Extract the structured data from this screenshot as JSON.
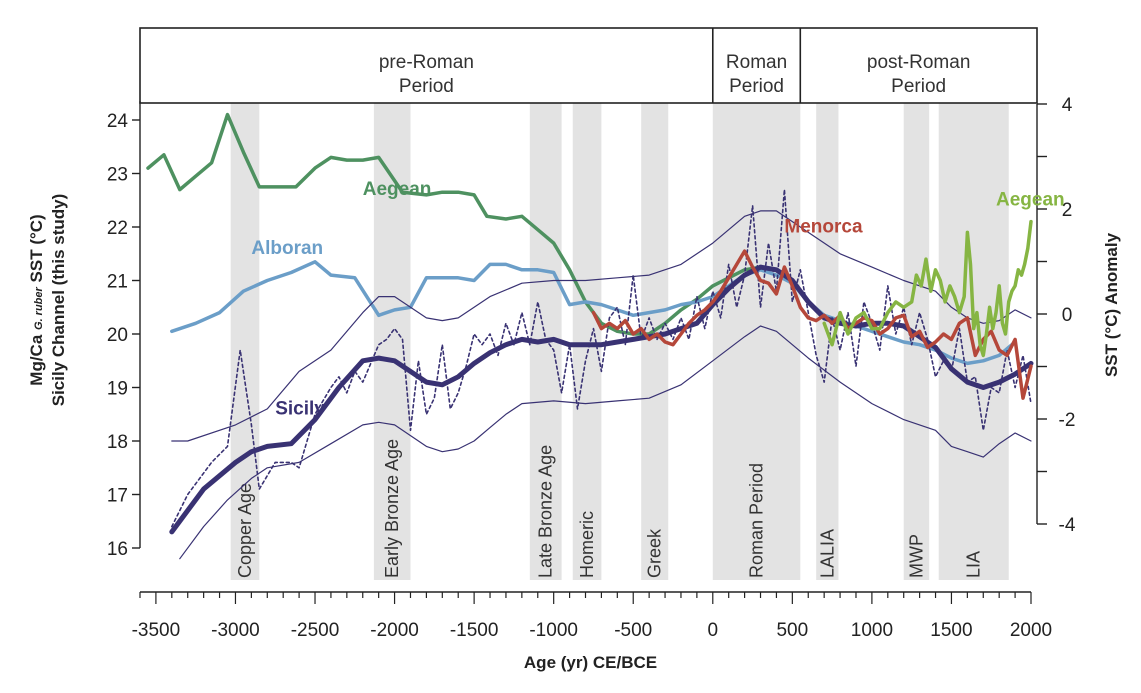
{
  "chart_data": {
    "type": "line",
    "xlabel": "Age (yr) CE/BCE",
    "ylabel_left_line1": "Mg/Ca ",
    "ylabel_left_sub": "G. ruber",
    "ylabel_left_line1_end": " SST (°C)",
    "ylabel_left_line2": "Sicily Channel (this study)",
    "ylabel_right": "SST (°C) Anomaly",
    "xlim": [
      -3600,
      2000
    ],
    "ylim_left": [
      16,
      24.4
    ],
    "ylim_right": [
      -4,
      4
    ],
    "x_ticks": [
      -3500,
      -3000,
      -2500,
      -2000,
      -1500,
      -1000,
      -500,
      0,
      500,
      1000,
      1500,
      2000
    ],
    "x_tick_labels": [
      "-3500",
      "-3000",
      "-2500",
      "-2000",
      "-1500",
      "-1000",
      "-500",
      "0",
      "500",
      "1000",
      "1500",
      "2000"
    ],
    "y_left_ticks": [
      16,
      17,
      18,
      19,
      20,
      21,
      22,
      23,
      24
    ],
    "y_left_tick_labels": [
      "16",
      "17",
      "18",
      "19",
      "20",
      "21",
      "22",
      "23",
      "24"
    ],
    "y_right_ticks": [
      -4,
      -2,
      0,
      2,
      4
    ],
    "y_right_tick_labels": [
      "-4",
      "-2",
      "0",
      "2",
      "4"
    ],
    "periods": [
      {
        "line1": "pre-Roman",
        "line2": "Period",
        "start": -3600,
        "end": 0
      },
      {
        "line1": "Roman",
        "line2": "Period",
        "start": 0,
        "end": 550
      },
      {
        "line1": "post-Roman",
        "line2": "Period",
        "start": 550,
        "end": 2000
      }
    ],
    "bands": [
      {
        "label": "Copper Age",
        "start": -3030,
        "end": -2850
      },
      {
        "label": "Early Bronze Age",
        "start": -2130,
        "end": -1900
      },
      {
        "label": "Late Bronze Age",
        "start": -1150,
        "end": -950
      },
      {
        "label": "Homeric",
        "start": -880,
        "end": -700
      },
      {
        "label": "Greek",
        "start": -450,
        "end": -280
      },
      {
        "label": "Roman Period",
        "start": 0,
        "end": 550
      },
      {
        "label": "LALIA",
        "start": 650,
        "end": 790
      },
      {
        "label": "MWP",
        "start": 1200,
        "end": 1360
      },
      {
        "label": "LIA",
        "start": 1420,
        "end": 1860
      }
    ],
    "series": [
      {
        "name": "Aegean",
        "color": "#4e9160",
        "axis": "left",
        "label_x": -2200,
        "label_y": 22.6,
        "x": [
          -3550,
          -3450,
          -3350,
          -3250,
          -3150,
          -3050,
          -2950,
          -2850,
          -2750,
          -2620,
          -2500,
          -2400,
          -2300,
          -2200,
          -2100,
          -1950,
          -1800,
          -1700,
          -1600,
          -1500,
          -1420,
          -1300,
          -1200,
          -1100,
          -1000,
          -900,
          -800,
          -700,
          -600,
          -500,
          -400,
          -300,
          -200,
          -100,
          0,
          100,
          200,
          300
        ],
        "values": [
          23.1,
          23.35,
          22.7,
          22.95,
          23.2,
          24.1,
          23.4,
          22.75,
          22.75,
          22.75,
          23.1,
          23.3,
          23.25,
          23.25,
          23.3,
          22.65,
          22.6,
          22.65,
          22.65,
          22.6,
          22.2,
          22.15,
          22.2,
          21.95,
          21.7,
          21.2,
          20.6,
          20.2,
          20.05,
          20.0,
          20.0,
          20.2,
          20.45,
          20.65,
          20.9,
          21.05,
          21.2,
          21.25
        ]
      },
      {
        "name": "Alboran",
        "color": "#6b9ec8",
        "axis": "left",
        "label_x": -2900,
        "label_y": 21.5,
        "x": [
          -3400,
          -3250,
          -3100,
          -2950,
          -2800,
          -2650,
          -2500,
          -2400,
          -2250,
          -2100,
          -2000,
          -1900,
          -1800,
          -1700,
          -1600,
          -1500,
          -1400,
          -1300,
          -1200,
          -1100,
          -1000,
          -900,
          -800,
          -700,
          -600,
          -500,
          -400,
          -300,
          -200,
          -100,
          0,
          100,
          200,
          300,
          400,
          500,
          600,
          700,
          800,
          900,
          1000,
          1100,
          1200,
          1300,
          1400,
          1500,
          1600,
          1700,
          1800,
          1900
        ],
        "values": [
          20.05,
          20.2,
          20.4,
          20.8,
          21.0,
          21.15,
          21.35,
          21.1,
          21.05,
          20.35,
          20.45,
          20.5,
          21.05,
          21.05,
          21.05,
          21.0,
          21.3,
          21.3,
          21.2,
          21.2,
          21.15,
          20.55,
          20.6,
          20.55,
          20.45,
          20.35,
          20.4,
          20.45,
          20.55,
          20.6,
          20.7,
          20.9,
          21.1,
          21.2,
          21.1,
          20.95,
          20.6,
          20.35,
          20.25,
          20.15,
          20.05,
          19.95,
          19.85,
          19.8,
          19.7,
          19.55,
          19.45,
          19.5,
          19.6,
          19.85
        ]
      },
      {
        "name": "Sicily",
        "color": "#393273",
        "axis": "left",
        "label_x": -2750,
        "label_y": 18.5,
        "x": [
          -3400,
          -3200,
          -3000,
          -2900,
          -2800,
          -2650,
          -2500,
          -2350,
          -2200,
          -2100,
          -2000,
          -1900,
          -1800,
          -1700,
          -1600,
          -1500,
          -1400,
          -1300,
          -1200,
          -1100,
          -1000,
          -900,
          -800,
          -700,
          -600,
          -500,
          -400,
          -300,
          -200,
          -100,
          0,
          100,
          200,
          300,
          400,
          500,
          600,
          700,
          800,
          900,
          1000,
          1100,
          1200,
          1300,
          1400,
          1500,
          1600,
          1700,
          1800,
          1900,
          2000
        ],
        "values": [
          16.3,
          17.1,
          17.6,
          17.8,
          17.9,
          17.95,
          18.4,
          19.0,
          19.5,
          19.55,
          19.5,
          19.3,
          19.1,
          19.05,
          19.2,
          19.45,
          19.65,
          19.8,
          19.9,
          19.85,
          19.9,
          19.8,
          19.8,
          19.8,
          19.85,
          19.9,
          19.95,
          20.0,
          20.1,
          20.2,
          20.55,
          20.85,
          21.1,
          21.25,
          21.2,
          21.0,
          20.6,
          20.3,
          20.2,
          20.15,
          20.2,
          20.2,
          20.15,
          19.95,
          19.75,
          19.35,
          19.1,
          19.0,
          19.1,
          19.25,
          19.45
        ]
      },
      {
        "name": "Sicily upper bound",
        "color": "#393273",
        "axis": "left",
        "x": [
          -3400,
          -3300,
          -3000,
          -2800,
          -2600,
          -2400,
          -2200,
          -2100,
          -2000,
          -1900,
          -1800,
          -1700,
          -1600,
          -1500,
          -1400,
          -1200,
          -1000,
          -800,
          -600,
          -400,
          -200,
          0,
          200,
          300,
          400,
          600,
          800,
          1000,
          1200,
          1400,
          1500,
          1600,
          1700,
          1800,
          1900,
          2000
        ],
        "values": [
          18.0,
          18.0,
          18.3,
          18.6,
          19.3,
          19.7,
          20.4,
          20.7,
          20.7,
          20.5,
          20.3,
          20.25,
          20.3,
          20.5,
          20.7,
          20.95,
          21.0,
          21.0,
          21.05,
          21.1,
          21.3,
          21.7,
          22.2,
          22.3,
          22.3,
          21.9,
          21.5,
          21.25,
          21.0,
          20.8,
          20.5,
          20.3,
          20.2,
          20.25,
          20.45,
          20.3
        ]
      },
      {
        "name": "Sicily lower bound",
        "color": "#393273",
        "axis": "left",
        "x": [
          -3350,
          -3200,
          -3050,
          -2900,
          -2800,
          -2600,
          -2400,
          -2200,
          -2100,
          -2000,
          -1900,
          -1800,
          -1700,
          -1600,
          -1500,
          -1400,
          -1300,
          -1200,
          -1000,
          -800,
          -600,
          -400,
          -200,
          0,
          200,
          300,
          400,
          600,
          800,
          1000,
          1200,
          1400,
          1500,
          1600,
          1700,
          1800,
          1900,
          2000
        ],
        "values": [
          15.8,
          16.4,
          16.9,
          17.3,
          17.5,
          17.6,
          17.95,
          18.3,
          18.35,
          18.3,
          18.1,
          17.9,
          17.8,
          17.85,
          18.0,
          18.25,
          18.5,
          18.7,
          18.75,
          18.7,
          18.75,
          18.8,
          19.05,
          19.5,
          19.95,
          20.15,
          20.05,
          19.55,
          19.1,
          18.7,
          18.4,
          18.2,
          17.9,
          17.8,
          17.7,
          17.95,
          18.15,
          18.0
        ]
      },
      {
        "name": "Sicily raw",
        "color": "#393273",
        "axis": "left",
        "dashed": true,
        "x": [
          -3400,
          -3300,
          -3150,
          -3050,
          -2970,
          -2900,
          -2850,
          -2750,
          -2650,
          -2600,
          -2500,
          -2400,
          -2350,
          -2300,
          -2250,
          -2200,
          -2100,
          -2050,
          -2000,
          -1950,
          -1900,
          -1850,
          -1800,
          -1750,
          -1700,
          -1650,
          -1600,
          -1550,
          -1500,
          -1450,
          -1400,
          -1350,
          -1300,
          -1250,
          -1200,
          -1150,
          -1100,
          -1050,
          -1000,
          -950,
          -900,
          -850,
          -800,
          -750,
          -700,
          -650,
          -600,
          -550,
          -500,
          -450,
          -400,
          -350,
          -300,
          -250,
          -200,
          -150,
          -100,
          -50,
          0,
          50,
          100,
          150,
          200,
          250,
          300,
          350,
          400,
          450,
          500,
          550,
          600,
          650,
          700,
          750,
          800,
          850,
          900,
          950,
          1000,
          1050,
          1100,
          1150,
          1200,
          1250,
          1300,
          1350,
          1400,
          1450,
          1500,
          1550,
          1600,
          1650,
          1700,
          1750,
          1800,
          1850,
          1900,
          1950,
          2000
        ],
        "values": [
          16.4,
          17.0,
          17.6,
          17.9,
          19.7,
          18.3,
          17.1,
          17.6,
          17.6,
          17.5,
          18.5,
          19.0,
          19.2,
          18.9,
          19.3,
          19.1,
          19.8,
          19.9,
          20.1,
          19.9,
          18.2,
          19.5,
          18.5,
          18.8,
          19.8,
          18.6,
          18.9,
          19.4,
          20.0,
          19.8,
          20.0,
          19.6,
          20.2,
          19.8,
          20.4,
          19.8,
          20.6,
          19.9,
          19.7,
          18.9,
          19.8,
          18.6,
          19.5,
          20.1,
          19.3,
          20.3,
          20.5,
          19.8,
          21.1,
          19.9,
          20.3,
          19.9,
          20.2,
          19.9,
          20.3,
          19.9,
          20.7,
          20.1,
          20.8,
          20.3,
          21.3,
          20.5,
          21.1,
          22.4,
          20.5,
          21.7,
          20.8,
          22.7,
          20.6,
          21.2,
          20.4,
          19.6,
          19.1,
          20.3,
          19.7,
          20.4,
          19.4,
          20.6,
          20.2,
          19.7,
          20.9,
          20.0,
          20.5,
          19.8,
          20.4,
          19.9,
          19.2,
          19.5,
          19.3,
          20.1,
          19.1,
          19.2,
          18.2,
          19.0,
          18.9,
          19.7,
          19.0,
          19.6,
          18.7
        ]
      },
      {
        "name": "Menorca",
        "color": "#b5473a",
        "axis": "left",
        "label_x": 450,
        "label_y": 21.9,
        "x": [
          -750,
          -700,
          -650,
          -600,
          -550,
          -500,
          -450,
          -400,
          -350,
          -300,
          -250,
          -200,
          -150,
          -100,
          -50,
          0,
          50,
          100,
          150,
          200,
          250,
          300,
          350,
          400,
          450,
          500,
          550,
          600,
          650,
          700,
          750,
          800,
          850,
          900,
          950,
          1000,
          1050,
          1100,
          1150,
          1200,
          1250,
          1300,
          1350,
          1400,
          1450,
          1500,
          1550,
          1600,
          1650,
          1700,
          1750,
          1800,
          1850,
          1900,
          1950,
          2000
        ],
        "values": [
          20.4,
          20.1,
          20.2,
          20.1,
          20.25,
          20.0,
          20.1,
          19.9,
          20.0,
          19.85,
          19.8,
          20.0,
          20.2,
          20.35,
          20.45,
          20.6,
          20.8,
          21.05,
          21.3,
          21.55,
          21.25,
          21.0,
          20.95,
          20.75,
          21.25,
          20.9,
          20.5,
          20.3,
          20.25,
          20.35,
          20.2,
          20.35,
          20.1,
          20.2,
          20.3,
          20.25,
          20.0,
          20.1,
          20.3,
          20.35,
          19.95,
          20.05,
          19.75,
          19.85,
          20.0,
          19.9,
          20.2,
          20.3,
          19.6,
          19.9,
          20.05,
          19.7,
          19.6,
          19.9,
          18.8,
          19.4
        ]
      },
      {
        "name": "Aegean",
        "color": "#86b543",
        "axis": "left",
        "label_x": 1780,
        "label_y": 22.4,
        "x": [
          700,
          750,
          800,
          850,
          900,
          950,
          1000,
          1050,
          1100,
          1150,
          1200,
          1250,
          1280,
          1310,
          1340,
          1370,
          1400,
          1430,
          1460,
          1490,
          1520,
          1550,
          1580,
          1600,
          1620,
          1640,
          1660,
          1680,
          1700,
          1720,
          1740,
          1760,
          1780,
          1800,
          1820,
          1840,
          1860,
          1880,
          1900,
          1920,
          1940,
          1960,
          1980,
          2000
        ],
        "values": [
          20.2,
          19.8,
          20.4,
          20.0,
          20.3,
          20.4,
          20.1,
          20.1,
          20.4,
          20.6,
          20.5,
          20.6,
          21.1,
          20.9,
          21.4,
          20.8,
          21.2,
          21.0,
          20.6,
          20.9,
          20.7,
          20.4,
          20.7,
          21.9,
          21.3,
          20.1,
          20.4,
          19.8,
          19.6,
          20.0,
          20.5,
          20.1,
          20.4,
          20.9,
          20.2,
          20.0,
          20.6,
          20.8,
          20.9,
          21.2,
          21.1,
          21.3,
          21.6,
          22.1
        ]
      }
    ]
  }
}
